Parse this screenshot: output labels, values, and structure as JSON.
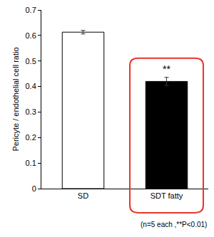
{
  "chart_data": {
    "type": "bar",
    "y_label": "Pericyte / endothelial cell ratio",
    "categories": [
      "SD",
      "SDT fatty"
    ],
    "values": [
      0.613,
      0.42
    ],
    "errors": [
      0.007,
      0.016
    ],
    "colors": [
      "#ffffff",
      "#000000"
    ],
    "ylim": [
      0,
      0.7
    ],
    "yticks": [
      0,
      0.1,
      0.2,
      0.3,
      0.4,
      0.5,
      0.6,
      0.7
    ],
    "grid": false,
    "annotations": [
      {
        "text": "**",
        "category": "SDT fatty"
      },
      {
        "text": "(n=5 each ,**P<0.01)"
      }
    ]
  }
}
